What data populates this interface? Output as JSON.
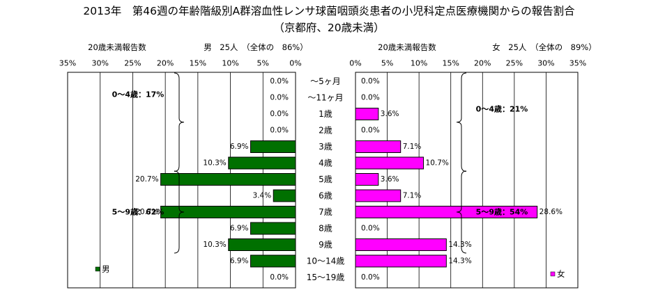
{
  "title": {
    "line1": "2013年　第46週の年齢階級別A群溶血性レンサ球菌咽頭炎患者の小児科定点医療機関からの報告割合",
    "line2": "（京都府、20歳未満）"
  },
  "chart_data": {
    "type": "bar",
    "orientation": "horizontal-butterfly",
    "categories": [
      "～5ヶ月",
      "～11ヶ月",
      "1歳",
      "2歳",
      "3歳",
      "4歳",
      "5歳",
      "6歳",
      "7歳",
      "8歳",
      "9歳",
      "10～14歳",
      "15～19歳"
    ],
    "axis_ticks": [
      "0%",
      "5%",
      "10%",
      "15%",
      "20%",
      "25%",
      "30%",
      "35%"
    ],
    "xlim": [
      0,
      35
    ],
    "grid": true,
    "series": [
      {
        "name": "男",
        "side": "left",
        "color": "#007000",
        "header_left": "20歳未満報告数",
        "header_right": "男　25人　（全体の　86%）",
        "values": [
          0.0,
          0.0,
          0.0,
          0.0,
          6.9,
          10.3,
          20.7,
          3.4,
          20.7,
          6.9,
          10.3,
          6.9,
          0.0
        ],
        "labels": [
          "0.0%",
          "0.0%",
          "0.0%",
          "0.0%",
          "6.9%",
          "10.3%",
          "20.7%",
          "3.4%",
          "20.7%",
          "6.9%",
          "10.3%",
          "6.9%",
          "0.0%"
        ],
        "groups": [
          {
            "label": "0～4歳：17%",
            "from": 0,
            "to": 5
          },
          {
            "label": "5～9歳：62%",
            "from": 6,
            "to": 10
          }
        ],
        "legend": "男"
      },
      {
        "name": "女",
        "side": "right",
        "color": "#ff00ff",
        "header_left": "20歳未満報告数",
        "header_right": "女　25人　（全体の　89%）",
        "values": [
          0.0,
          0.0,
          3.6,
          0.0,
          7.1,
          10.7,
          3.6,
          7.1,
          28.6,
          0.0,
          14.3,
          14.3,
          0.0
        ],
        "labels": [
          "0.0%",
          "0.0%",
          "3.6%",
          "0.0%",
          "7.1%",
          "10.7%",
          "3.6%",
          "7.1%",
          "28.6%",
          "0.0%",
          "14.3%",
          "14.3%",
          "0.0%"
        ],
        "groups": [
          {
            "label": "0～4歳：21%",
            "from": 0,
            "to": 5
          },
          {
            "label": "5～9歳：54%",
            "from": 6,
            "to": 10
          }
        ],
        "legend": "女"
      }
    ]
  }
}
